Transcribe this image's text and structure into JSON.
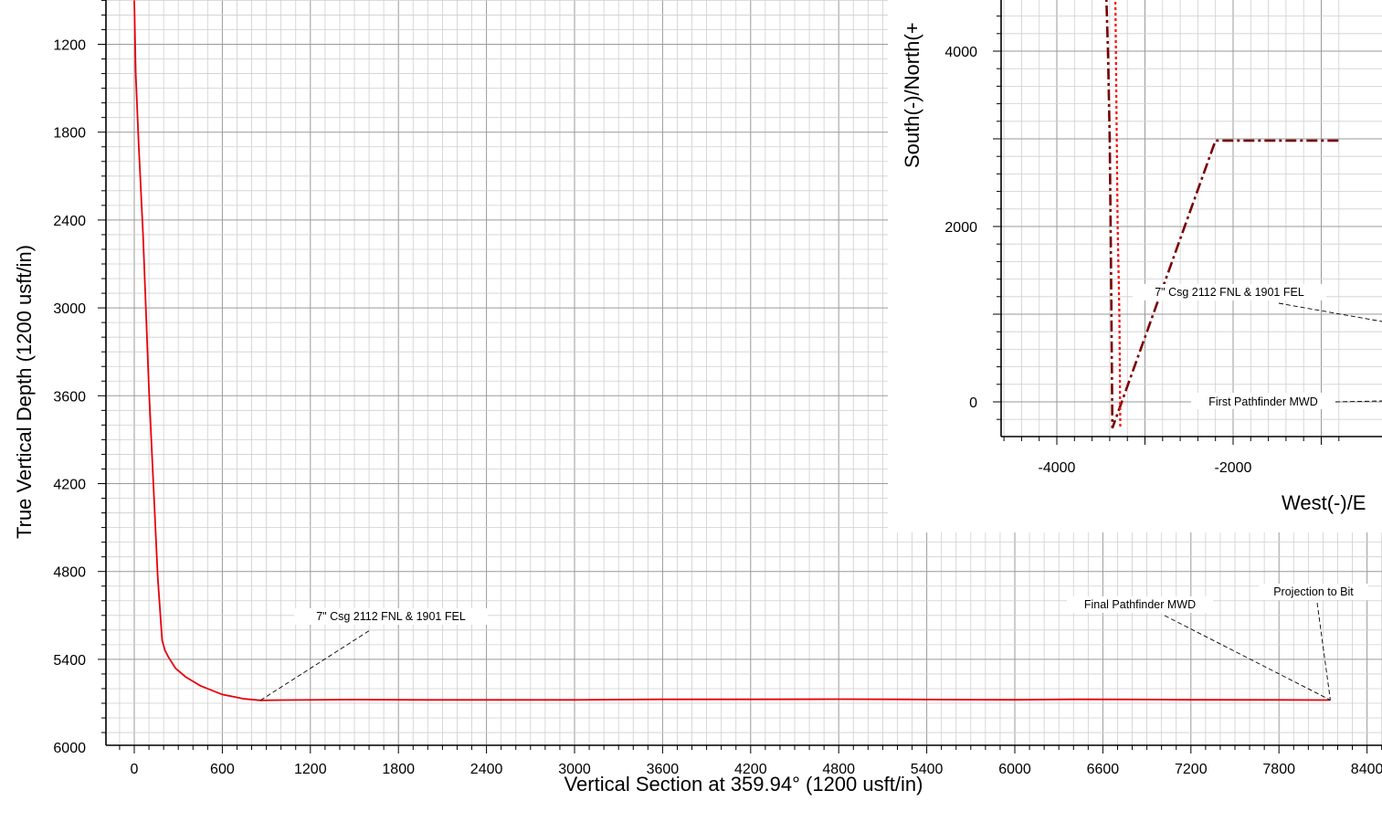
{
  "chart_data": [
    {
      "type": "line",
      "title": "",
      "xlabel": "Vertical Section at 359.94° (1200 usft/in)",
      "ylabel": "True Vertical Depth (1200 usft/in)",
      "xlim": [
        -200,
        8500
      ],
      "ylim": [
        6000,
        900
      ],
      "y_inverted": true,
      "x_ticks": [
        "0",
        "600",
        "1200",
        "1800",
        "2400",
        "3000",
        "3600",
        "4200",
        "4800",
        "5400",
        "6000",
        "6600",
        "7200",
        "7800",
        "8400"
      ],
      "y_ticks": [
        "1200",
        "1800",
        "2400",
        "3000",
        "3600",
        "4200",
        "4800",
        "5400",
        "6000"
      ],
      "grid": true,
      "series": [
        {
          "color": "#e8000b",
          "x": [
            0,
            10,
            30,
            60,
            100,
            130,
            160,
            190,
            210,
            230,
            280,
            350,
            450,
            600,
            750,
            860,
            1000,
            1500,
            2000,
            2400,
            3000,
            3600,
            4200,
            4800,
            5200,
            5500,
            6000,
            6400,
            6800,
            7200,
            7800,
            8150
          ],
          "y": [
            900,
            1400,
            1880,
            2500,
            3560,
            4200,
            4840,
            5270,
            5340,
            5380,
            5460,
            5520,
            5580,
            5640,
            5670,
            5680,
            5678,
            5675,
            5677,
            5677,
            5677,
            5673,
            5673,
            5672,
            5673,
            5675,
            5676,
            5673,
            5674,
            5676,
            5677,
            5678
          ]
        }
      ],
      "annotations": [
        {
          "text": "7\" Csg 2112 FNL & 1901 FEL",
          "x": 860,
          "y": 5680
        },
        {
          "text": "Final Pathfinder MWD",
          "x": 8150,
          "y": 5678
        },
        {
          "text": "Projection to Bit",
          "x": 8150,
          "y": 5678
        }
      ]
    },
    {
      "type": "line",
      "title": "",
      "xlabel": "West(-)/E",
      "ylabel": "South(-)/North(+",
      "xlim": [
        -4900,
        -800
      ],
      "ylim": [
        -400,
        5000
      ],
      "x_ticks": [
        "-4000",
        "-2000"
      ],
      "y_ticks": [
        "0",
        "2000",
        "4000"
      ],
      "grid": true,
      "series": [
        {
          "name": "",
          "color": "#7a0000",
          "style": "dash-dot",
          "x": [
            -3450,
            -3420,
            -3400,
            -3390,
            -3380,
            -3370,
            -2200,
            -800
          ],
          "y": [
            5000,
            4000,
            3000,
            2000,
            1000,
            -300,
            2980,
            2980
          ]
        },
        {
          "name": "",
          "color": "#ff0000",
          "style": "dotted",
          "x": [
            -3340,
            -3330,
            -3320,
            -3310,
            -3290,
            -3280
          ],
          "y": [
            5000,
            4000,
            3000,
            2000,
            1000,
            -300
          ]
        }
      ],
      "annotations": [
        {
          "text": "7\" Csg 2112 FNL & 1901 FEL",
          "x": -800,
          "y": 900
        },
        {
          "text": "First Pathfinder MWD",
          "x": -800,
          "y": 0
        }
      ]
    }
  ]
}
